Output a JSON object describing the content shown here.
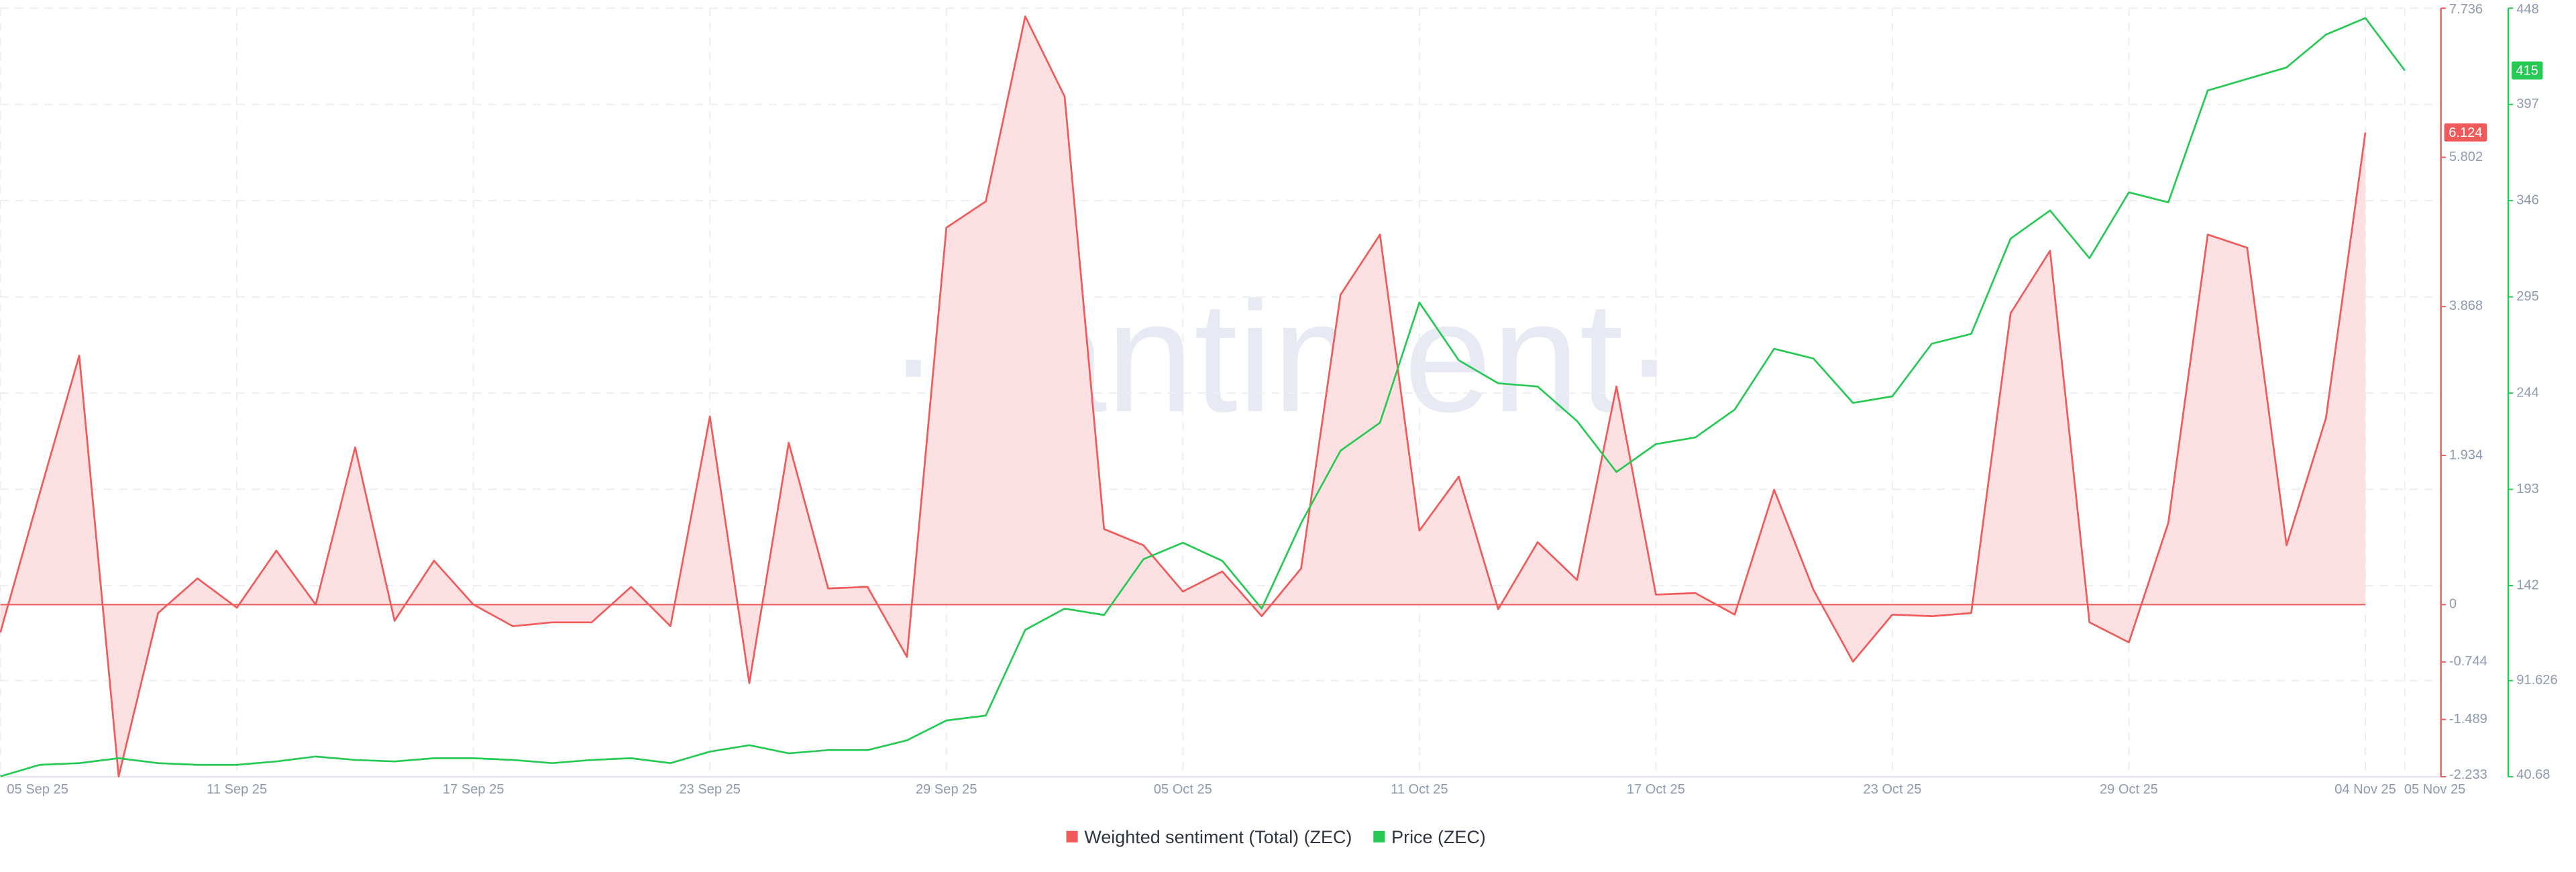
{
  "chart_data": {
    "type": "line",
    "watermark": "·santiment·",
    "categories": [
      "05 Sep 25",
      null,
      null,
      null,
      null,
      null,
      "11 Sep 25",
      null,
      null,
      null,
      null,
      null,
      "17 Sep 25",
      null,
      null,
      null,
      null,
      null,
      "23 Sep 25",
      null,
      null,
      null,
      null,
      null,
      "29 Sep 25",
      null,
      null,
      null,
      null,
      null,
      "05 Oct 25",
      null,
      null,
      null,
      null,
      null,
      "11 Oct 25",
      null,
      null,
      null,
      null,
      null,
      "17 Oct 25",
      null,
      null,
      null,
      null,
      null,
      "23 Oct 25",
      null,
      null,
      null,
      null,
      null,
      "29 Oct 25",
      null,
      null,
      null,
      null,
      null,
      "04 Nov 25",
      "05 Nov 25"
    ],
    "series": [
      {
        "name": "Weighted sentiment (Total) (ZEC)",
        "color": "#f05a5a",
        "fill": "#fde0e2",
        "values": [
          -0.36,
          1.45,
          3.23,
          -2.23,
          -0.11,
          0.34,
          -0.04,
          0.7,
          0.0,
          2.04,
          -0.21,
          0.57,
          0.0,
          -0.28,
          -0.23,
          -0.23,
          0.23,
          -0.28,
          2.44,
          -1.02,
          2.1,
          0.21,
          0.23,
          -0.68,
          4.89,
          5.23,
          7.63,
          6.59,
          0.98,
          0.77,
          0.17,
          0.43,
          -0.15,
          0.47,
          4.02,
          4.8,
          0.96,
          1.66,
          -0.06,
          0.81,
          0.32,
          2.83,
          0.13,
          0.15,
          -0.13,
          1.49,
          0.19,
          -0.74,
          -0.13,
          -0.15,
          -0.11,
          3.78,
          4.59,
          -0.23,
          -0.49,
          1.06,
          4.8,
          4.63,
          0.77,
          2.42,
          6.124,
          null
        ]
      },
      {
        "name": "Price (ZEC)",
        "color": "#26c953",
        "axis": "y2",
        "values": [
          40.9,
          47,
          47.9,
          50.5,
          47.9,
          47,
          47,
          48.8,
          51.4,
          49.6,
          48.8,
          50.5,
          50.5,
          49.6,
          47.9,
          49.6,
          50.5,
          47.9,
          54,
          57.4,
          53.1,
          54.8,
          54.8,
          60,
          70.5,
          73.1,
          118.5,
          129.8,
          126.4,
          156,
          164.7,
          155.1,
          129.8,
          175.1,
          213.5,
          228.3,
          292,
          261.4,
          249.2,
          247.5,
          229.2,
          202.2,
          217,
          220.5,
          235.3,
          267.5,
          262.3,
          238.8,
          242.3,
          270.2,
          275.4,
          325.9,
          340.8,
          315.5,
          350.4,
          345.1,
          404.4,
          410.5,
          416.6,
          434,
          442.8,
          415
        ]
      }
    ],
    "ylim": [
      -2.233,
      7.736
    ],
    "yticks": [
      -2.233,
      -1.489,
      -0.744,
      0,
      1.934,
      3.868,
      5.802,
      7.736
    ],
    "y2lim": [
      40.68,
      448
    ],
    "y2ticks": [
      40.68,
      91.626,
      142,
      193,
      244,
      295,
      346,
      397,
      448
    ],
    "grid": true,
    "legend": "bottom"
  }
}
